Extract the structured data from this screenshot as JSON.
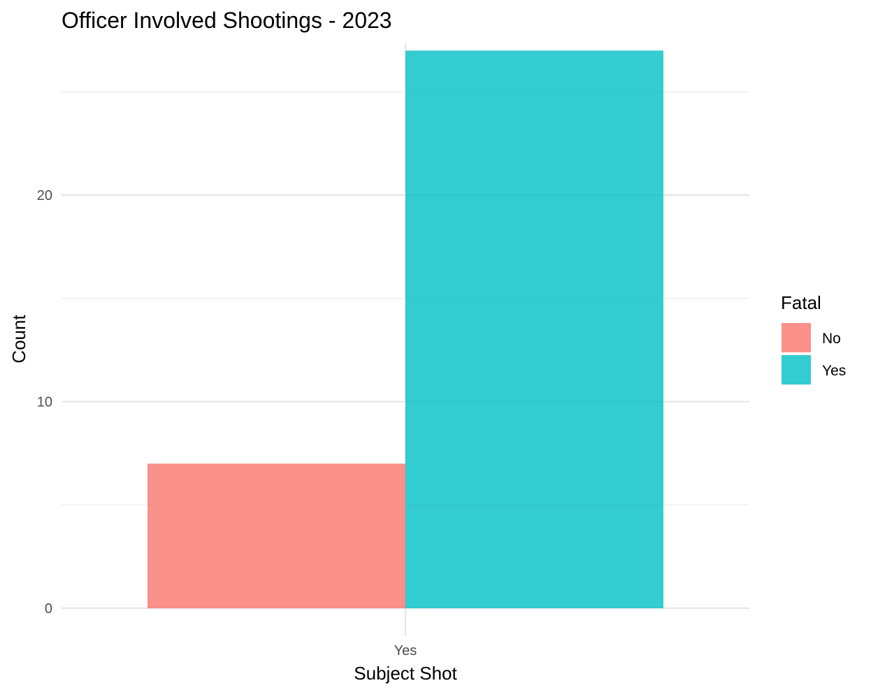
{
  "chart_data": {
    "type": "bar",
    "title": "Officer Involved Shootings - 2023",
    "xlabel": "Subject Shot",
    "ylabel": "Count",
    "categories": [
      "Yes"
    ],
    "series": [
      {
        "name": "No",
        "values": [
          7
        ],
        "color": "#F8766D"
      },
      {
        "name": "Yes",
        "values": [
          27
        ],
        "color": "#00BFC4"
      }
    ],
    "ylim": [
      0,
      27.35
    ],
    "yticks": [
      0,
      10,
      20
    ],
    "legend": {
      "title": "Fatal",
      "position": "right"
    },
    "grid": true
  }
}
